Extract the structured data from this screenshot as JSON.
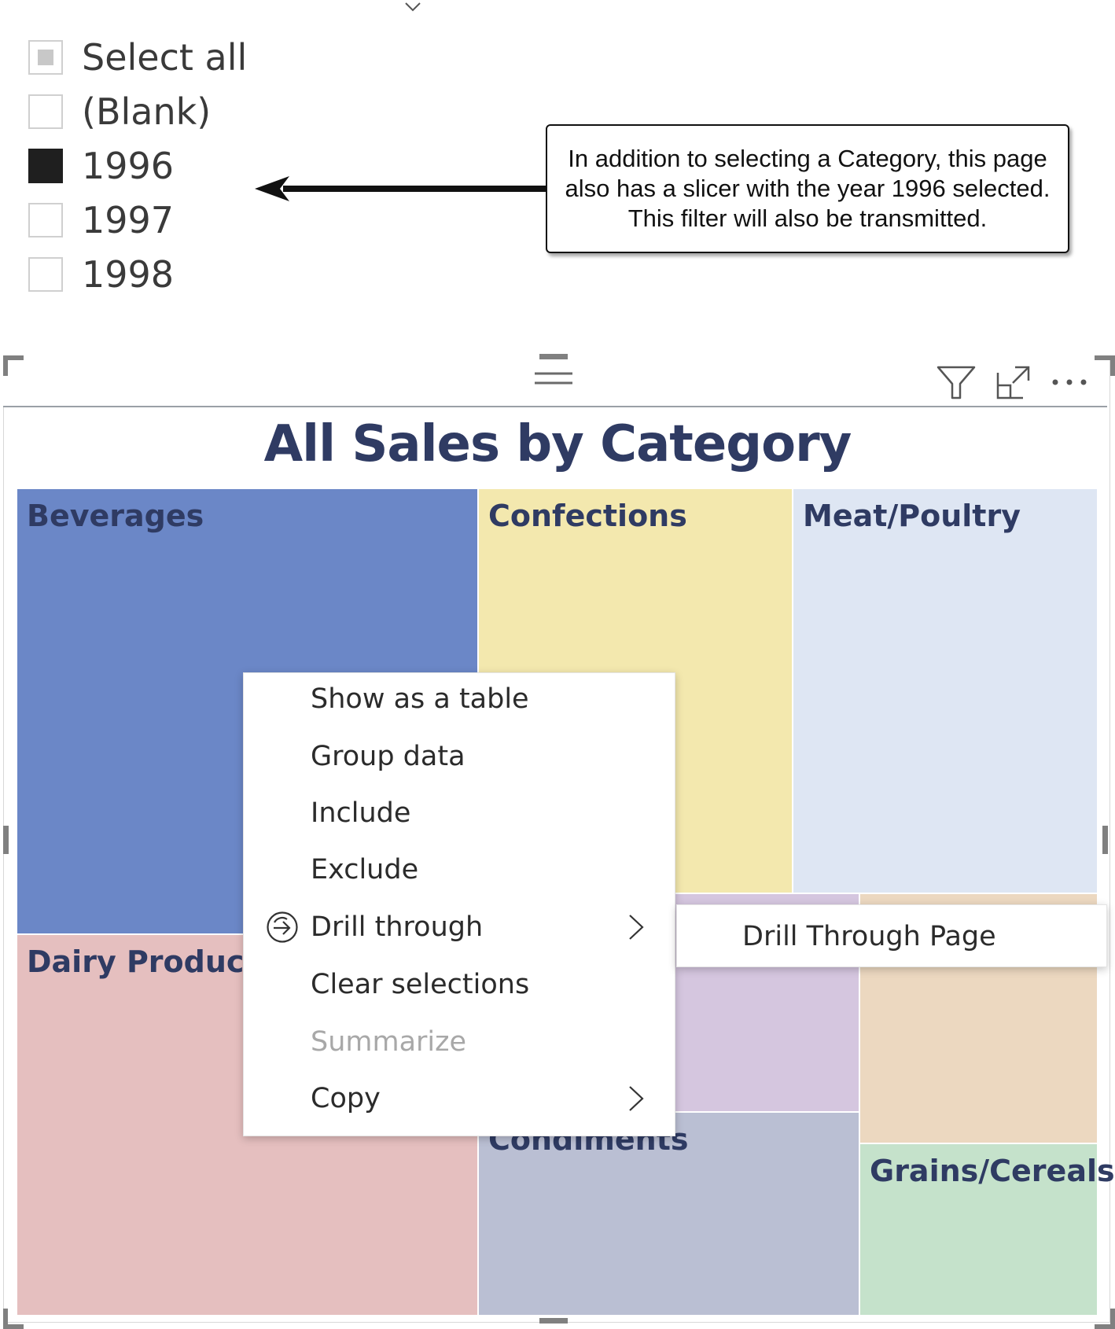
{
  "slicer": {
    "items": [
      {
        "label": "Select all",
        "state": "partial"
      },
      {
        "label": "(Blank)",
        "state": "unchecked"
      },
      {
        "label": "1996",
        "state": "checked"
      },
      {
        "label": "1997",
        "state": "unchecked"
      },
      {
        "label": "1998",
        "state": "unchecked"
      }
    ]
  },
  "callout": {
    "text": "In addition to selecting a Category, this page also has a slicer with the year 1996 selected. This filter will also be transmitted."
  },
  "visual": {
    "header_icons": [
      "drag-grip-icon",
      "filter-icon",
      "focus-mode-icon",
      "more-options-icon"
    ]
  },
  "chart_data": {
    "type": "treemap",
    "title": "All Sales by Category",
    "categories": [
      {
        "name": "Beverages",
        "color": "#6b87c7"
      },
      {
        "name": "Dairy Products",
        "color": "#e5bfbf"
      },
      {
        "name": "Confections",
        "color": "#f3e8ae"
      },
      {
        "name": "Meat/Poultry",
        "color": "#dee6f3"
      },
      {
        "name": "Condiments",
        "color": "#babfd3"
      },
      {
        "name": "Grains/Cereals",
        "color": "#c5e2cb"
      },
      {
        "name": "",
        "color": "#d5c6df"
      },
      {
        "name": "",
        "color": "#ecd8c0"
      }
    ]
  },
  "context_menu": {
    "items": [
      {
        "label": "Show as a table",
        "disabled": false,
        "submenu": false
      },
      {
        "label": "Group data",
        "disabled": false,
        "submenu": false
      },
      {
        "label": "Include",
        "disabled": false,
        "submenu": false
      },
      {
        "label": "Exclude",
        "disabled": false,
        "submenu": false
      },
      {
        "label": "Drill through",
        "disabled": false,
        "submenu": true,
        "icon": "drill-through-icon"
      },
      {
        "label": "Clear selections",
        "disabled": false,
        "submenu": false
      },
      {
        "label": "Summarize",
        "disabled": true,
        "submenu": false
      },
      {
        "label": "Copy",
        "disabled": false,
        "submenu": true
      }
    ],
    "submenu": {
      "label": "Drill Through Page"
    }
  }
}
